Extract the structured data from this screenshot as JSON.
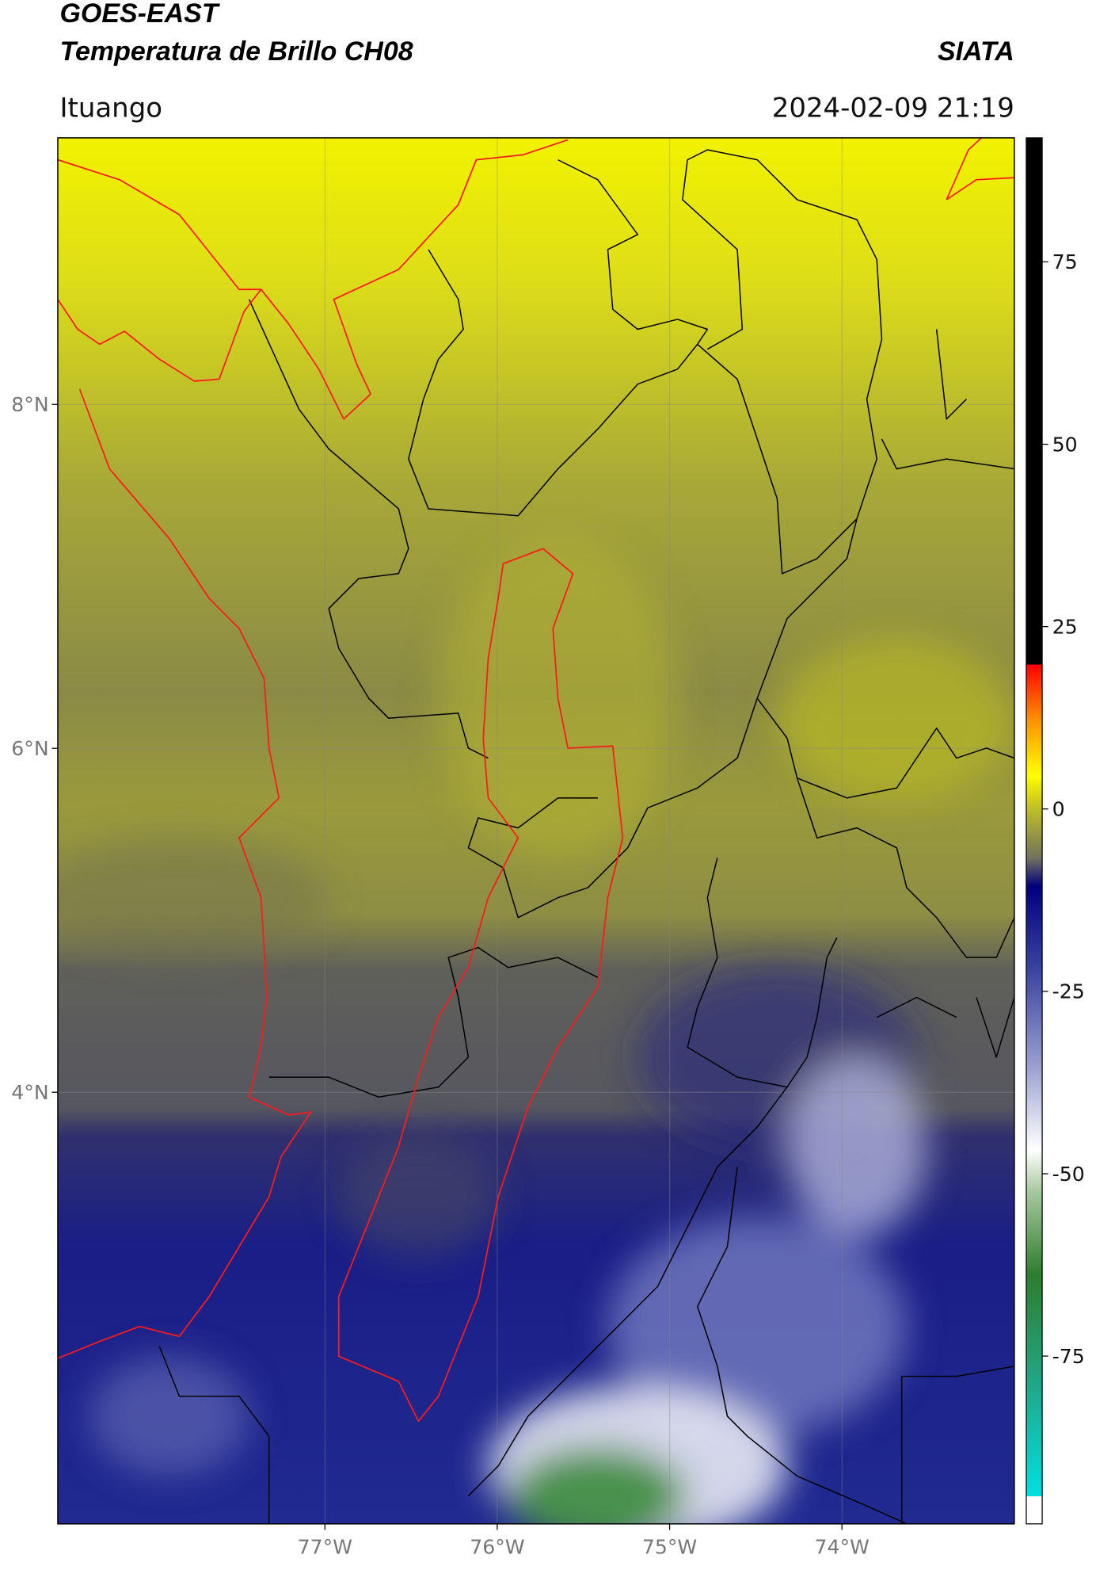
{
  "header": {
    "title": "GOES-EAST",
    "subtitle": "Temperatura de Brillo CH08",
    "brand": "SIATA",
    "location": "Ituango",
    "timestamp": "2024-02-09 21:19"
  },
  "map": {
    "xlim": [
      -78.55,
      -73.0
    ],
    "ylim": [
      1.49,
      9.55
    ],
    "xticks": [
      {
        "value": -77,
        "label": "77°W"
      },
      {
        "value": -76,
        "label": "76°W"
      },
      {
        "value": -75,
        "label": "75°W"
      },
      {
        "value": -74,
        "label": "74°W"
      }
    ],
    "yticks": [
      {
        "value": 8,
        "label": "8°N"
      },
      {
        "value": 6,
        "label": "6°N"
      },
      {
        "value": 4,
        "label": "4°N"
      }
    ]
  },
  "colorbar": {
    "lim": [
      -98,
      92
    ],
    "ticks": [
      75,
      50,
      25,
      0,
      -25,
      -50,
      -75
    ]
  }
}
